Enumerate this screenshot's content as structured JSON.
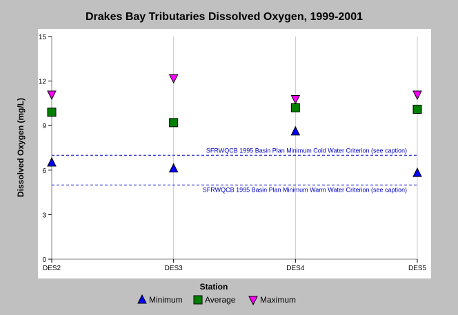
{
  "chart_data": {
    "type": "scatter",
    "title": "Drakes Bay Tributaries Dissolved Oxygen, 1999-2001",
    "xlabel": "Station",
    "ylabel": "Dissolved Oxygen (mg/L)",
    "categories": [
      "DES2",
      "DES3",
      "DES4",
      "DES5"
    ],
    "ylim": [
      0,
      15
    ],
    "yticks": [
      0,
      3,
      6,
      9,
      12,
      15
    ],
    "grid": true,
    "legend_position": "bottom",
    "series": [
      {
        "name": "Minimum",
        "marker": "triangle-up",
        "color": "#0000ff",
        "values": [
          6.5,
          6.1,
          8.6,
          5.8
        ]
      },
      {
        "name": "Average",
        "marker": "square",
        "color": "#008000",
        "values": [
          9.9,
          9.2,
          10.2,
          10.1
        ]
      },
      {
        "name": "Maximum",
        "marker": "triangle-down",
        "color": "#ff00ff",
        "values": [
          11.1,
          12.2,
          10.8,
          11.1
        ]
      }
    ],
    "reference_lines": [
      {
        "label": "SFRWQCB 1995 Basin Plan Minimum Cold Water Criterion (see caption)",
        "value": 7,
        "color": "#0000c0"
      },
      {
        "label": "SFRWQCB 1995 Basin Plan Minimum Warm Water Criterion (see caption)",
        "value": 5,
        "color": "#0000c0"
      }
    ]
  }
}
